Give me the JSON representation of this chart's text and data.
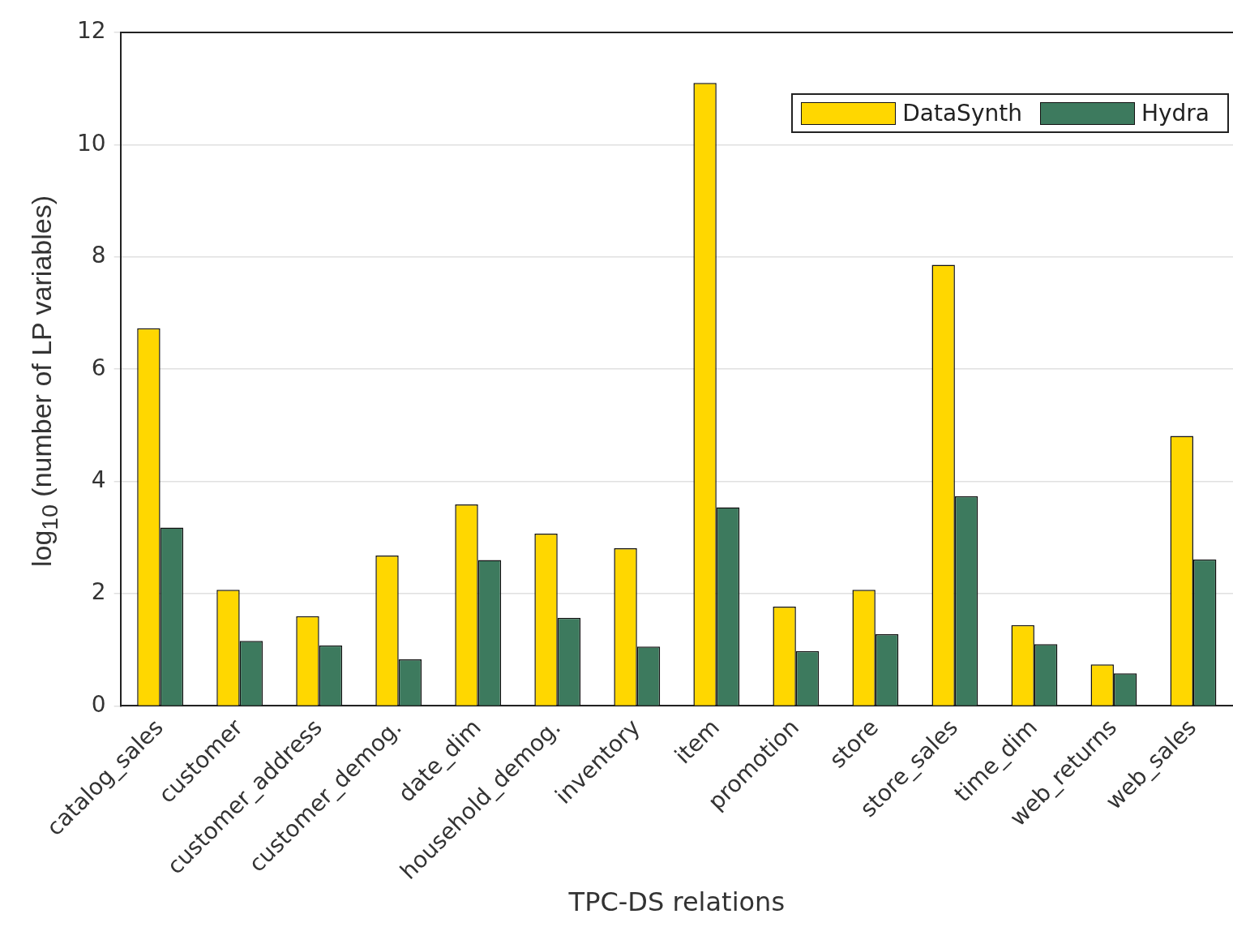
{
  "chart_data": {
    "type": "bar",
    "xlabel": "TPC-DS relations",
    "ylabel": "log$_{10}$ (number of LP variables)",
    "categories": [
      "catalog_sales",
      "customer",
      "customer_address",
      "customer_demog.",
      "date_dim",
      "household_demog.",
      "inventory",
      "item",
      "promotion",
      "store",
      "store_sales",
      "time_dim",
      "web_returns",
      "web_sales"
    ],
    "series": [
      {
        "name": "DataSynth",
        "color": "#ffd700",
        "values": [
          6.73,
          2.07,
          1.6,
          2.68,
          3.59,
          3.07,
          2.81,
          11.1,
          1.77,
          2.07,
          7.86,
          1.44,
          0.74,
          4.81
        ]
      },
      {
        "name": "Hydra",
        "color": "#3d7a5e",
        "values": [
          3.18,
          1.16,
          1.08,
          0.83,
          2.6,
          1.57,
          1.06,
          3.54,
          0.98,
          1.28,
          3.74,
          1.1,
          0.58,
          2.61
        ]
      }
    ],
    "ylim": [
      0,
      12
    ],
    "yticks": [
      0,
      2,
      4,
      6,
      8,
      10,
      12
    ],
    "grid": "y",
    "legend": "top right"
  }
}
